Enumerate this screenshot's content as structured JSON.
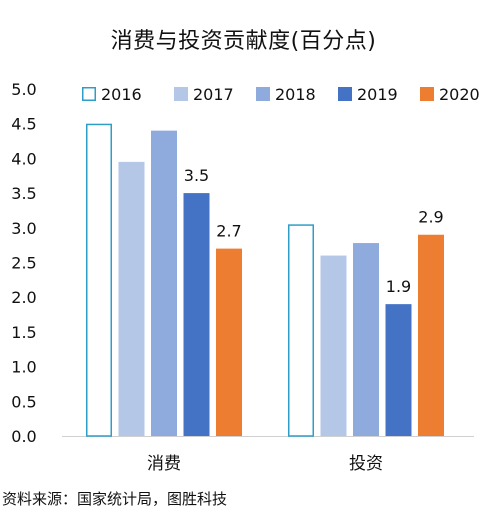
{
  "chart_data": {
    "type": "bar",
    "title": "消费与投资贡献度(百分点)",
    "categories": [
      "消费",
      "投资"
    ],
    "series": [
      {
        "name": "2016",
        "values": [
          4.5,
          3.05
        ],
        "color": "#ffffff",
        "stroke": "#2e9ec8"
      },
      {
        "name": "2017",
        "values": [
          3.95,
          2.6
        ],
        "color": "#b4c7e7",
        "stroke": ""
      },
      {
        "name": "2018",
        "values": [
          4.4,
          2.78
        ],
        "color": "#8faadc",
        "stroke": ""
      },
      {
        "name": "2019",
        "values": [
          3.5,
          1.9
        ],
        "color": "#4472c4",
        "stroke": ""
      },
      {
        "name": "2020",
        "values": [
          2.7,
          2.9
        ],
        "color": "#ed7d31",
        "stroke": ""
      }
    ],
    "data_labels": [
      {
        "series": 3,
        "category": 0,
        "text": "3.5"
      },
      {
        "series": 4,
        "category": 0,
        "text": "2.7"
      },
      {
        "series": 3,
        "category": 1,
        "text": "1.9"
      },
      {
        "series": 4,
        "category": 1,
        "text": "2.9"
      }
    ],
    "ylim": [
      0,
      5
    ],
    "yticks": [
      "0.0",
      "0.5",
      "1.0",
      "1.5",
      "2.0",
      "2.5",
      "3.0",
      "3.5",
      "4.0",
      "4.5",
      "5.0"
    ],
    "xlabel": "",
    "ylabel": "",
    "grid": false,
    "legend_position": "top"
  },
  "source_note": "资料来源：国家统计局，图胜科技"
}
